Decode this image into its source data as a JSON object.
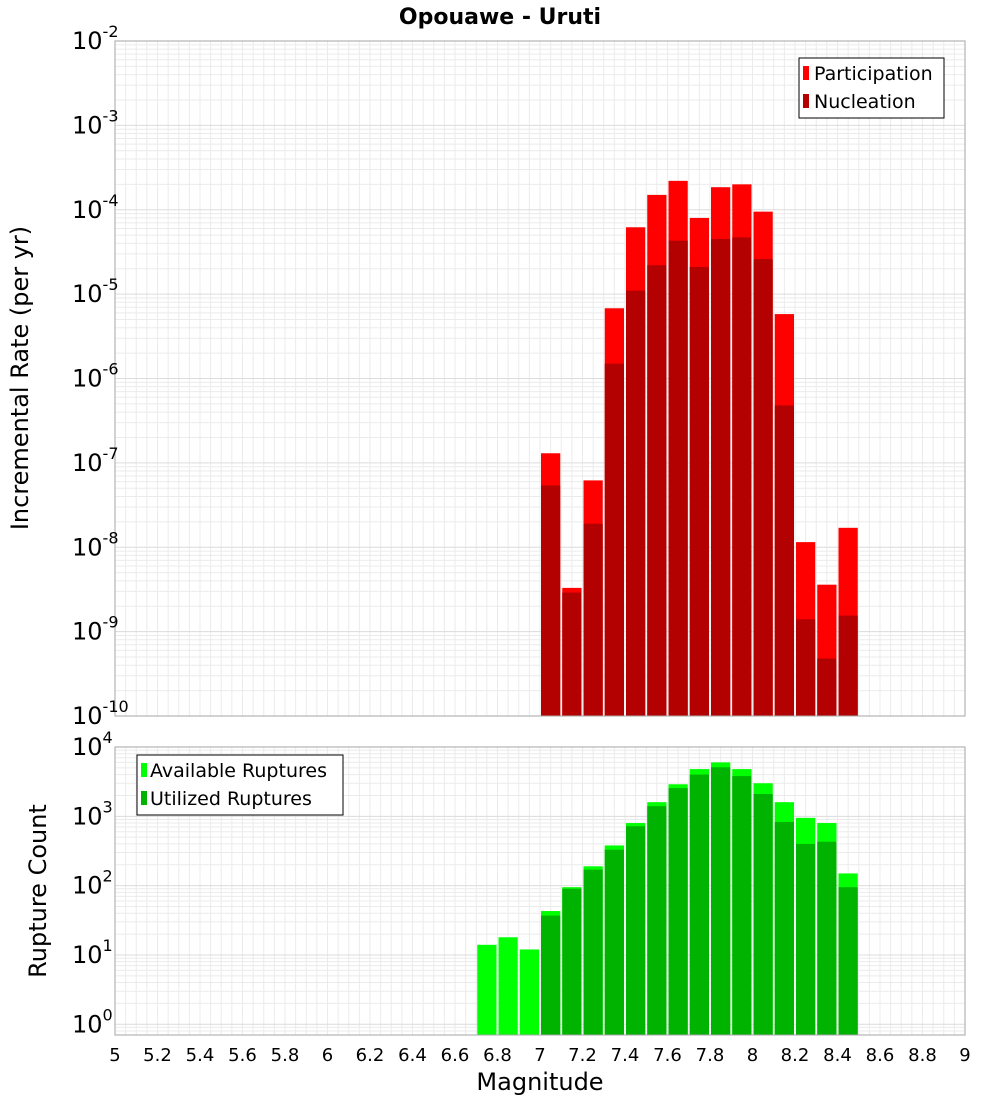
{
  "title": "Opouawe - Uruti",
  "chart_data": [
    {
      "type": "bar",
      "panel": "top",
      "ylabel": "Incremental Rate (per yr)",
      "yscale": "log",
      "ylim": [
        1e-10,
        0.01
      ],
      "xlim": [
        5,
        9
      ],
      "y_ticks": [
        {
          "base": "10",
          "exp": "-10"
        },
        {
          "base": "10",
          "exp": "-9"
        },
        {
          "base": "10",
          "exp": "-8"
        },
        {
          "base": "10",
          "exp": "-7"
        },
        {
          "base": "10",
          "exp": "-6"
        },
        {
          "base": "10",
          "exp": "-5"
        },
        {
          "base": "10",
          "exp": "-4"
        },
        {
          "base": "10",
          "exp": "-3"
        },
        {
          "base": "10",
          "exp": "-2"
        }
      ],
      "legend_position": "top-right",
      "x": [
        7.05,
        7.15,
        7.25,
        7.35,
        7.45,
        7.55,
        7.65,
        7.75,
        7.85,
        7.95,
        8.05,
        8.15,
        8.25,
        8.35,
        8.45
      ],
      "series": [
        {
          "name": "Participation",
          "color": "#ff0000",
          "values": [
            1.3e-07,
            3.3e-09,
            6.2e-08,
            6.8e-06,
            6.2e-05,
            0.00015,
            0.00022,
            8e-05,
            0.000185,
            0.0002,
            9.5e-05,
            5.8e-06,
            1.15e-08,
            3.6e-09,
            1.7e-08
          ]
        },
        {
          "name": "Nucleation",
          "color": "#b30000",
          "values": [
            5.4e-08,
            2.9e-09,
            1.9e-08,
            1.5e-06,
            1.1e-05,
            2.2e-05,
            4.3e-05,
            2.1e-05,
            4.5e-05,
            4.7e-05,
            2.6e-05,
            4.8e-07,
            1.4e-09,
            4.8e-10,
            1.55e-09
          ]
        }
      ]
    },
    {
      "type": "bar",
      "panel": "bottom",
      "ylabel": "Rupture Count",
      "xlabel": "Magnitude",
      "yscale": "log",
      "ylim": [
        0.7,
        10000
      ],
      "xlim": [
        5,
        9
      ],
      "y_ticks": [
        {
          "base": "10",
          "exp": "0",
          "value": 1
        },
        {
          "base": "10",
          "exp": "1",
          "value": 10
        },
        {
          "base": "10",
          "exp": "2",
          "value": 100
        },
        {
          "base": "10",
          "exp": "3",
          "value": 1000
        },
        {
          "base": "10",
          "exp": "4",
          "value": 10000
        }
      ],
      "x_ticks": [
        "5",
        "5.2",
        "5.4",
        "5.6",
        "5.8",
        "6",
        "6.2",
        "6.4",
        "6.6",
        "6.8",
        "7",
        "7.2",
        "7.4",
        "7.6",
        "7.8",
        "8",
        "8.2",
        "8.4",
        "8.6",
        "8.8",
        "9"
      ],
      "legend_position": "top-left",
      "x": [
        6.75,
        6.85,
        6.95,
        7.05,
        7.15,
        7.25,
        7.35,
        7.45,
        7.55,
        7.65,
        7.75,
        7.85,
        7.95,
        8.05,
        8.15,
        8.25,
        8.35,
        8.45
      ],
      "series": [
        {
          "name": "Available Ruptures",
          "color": "#00ff00",
          "values": [
            14,
            18,
            12,
            43,
            95,
            190,
            380,
            800,
            1600,
            2900,
            4800,
            6000,
            4800,
            3000,
            1600,
            950,
            800,
            150
          ]
        },
        {
          "name": "Utilized Ruptures",
          "color": "#00b300",
          "values": [
            null,
            null,
            null,
            37,
            90,
            170,
            330,
            720,
            1400,
            2550,
            4000,
            5100,
            3800,
            2100,
            830,
            400,
            430,
            95
          ]
        }
      ]
    }
  ]
}
